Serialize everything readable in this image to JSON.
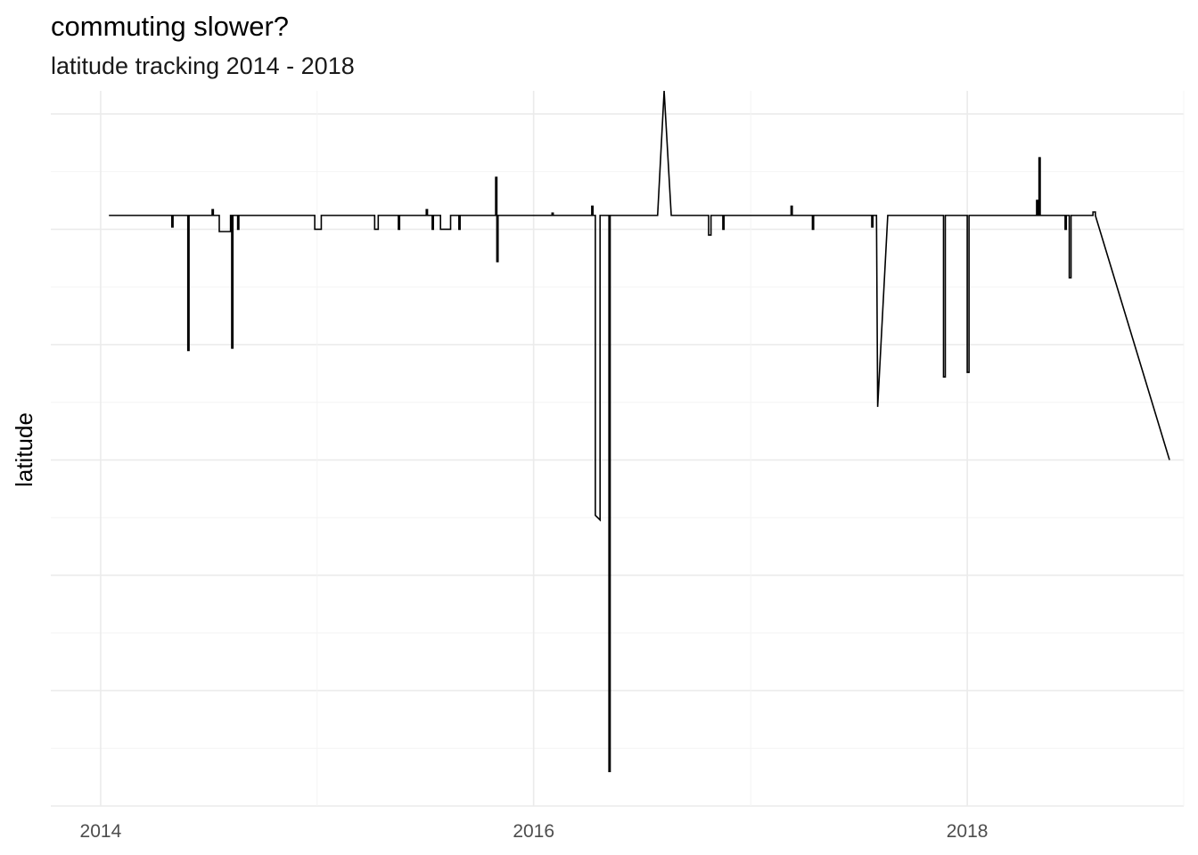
{
  "chart_data": {
    "type": "line",
    "title": "commuting slower?",
    "subtitle": "latitude tracking 2014 - 2018",
    "xlabel": "",
    "ylabel": "latitude",
    "x_ticks": [
      "2014",
      "2016",
      "2018"
    ],
    "y_ticks_labeled": false,
    "grid": true,
    "legend": "none",
    "line_color": "#000000",
    "xlim": [
      "2013-10-09",
      "2019-01-01"
    ],
    "ylim": [
      -2.0,
      4.2
    ],
    "series": [
      {
        "values": [
          [
            "2014-01-15",
            3.12
          ],
          [
            "2014-05-01",
            3.12
          ],
          [
            "2014-05-01",
            3.02
          ],
          [
            "2014-05-03",
            3.02
          ],
          [
            "2014-05-03",
            3.12
          ],
          [
            "2014-05-28",
            3.12
          ],
          [
            "2014-05-28",
            1.95
          ],
          [
            "2014-05-30",
            1.95
          ],
          [
            "2014-05-30",
            3.12
          ],
          [
            "2014-07-08",
            3.12
          ],
          [
            "2014-07-08",
            3.17
          ],
          [
            "2014-07-10",
            3.17
          ],
          [
            "2014-07-10",
            3.12
          ],
          [
            "2014-07-20",
            3.12
          ],
          [
            "2014-07-20",
            2.98
          ],
          [
            "2014-08-08",
            2.98
          ],
          [
            "2014-08-08",
            3.12
          ],
          [
            "2014-08-10",
            3.12
          ],
          [
            "2014-08-10",
            1.97
          ],
          [
            "2014-08-12",
            1.97
          ],
          [
            "2014-08-12",
            3.12
          ],
          [
            "2014-08-20",
            3.12
          ],
          [
            "2014-08-20",
            3.0
          ],
          [
            "2014-08-22",
            3.0
          ],
          [
            "2014-08-22",
            3.12
          ],
          [
            "2014-12-28",
            3.12
          ],
          [
            "2014-12-28",
            3.0
          ],
          [
            "2015-01-08",
            3.0
          ],
          [
            "2015-01-08",
            3.12
          ],
          [
            "2015-04-08",
            3.12
          ],
          [
            "2015-04-08",
            3.0
          ],
          [
            "2015-04-14",
            3.0
          ],
          [
            "2015-04-14",
            3.12
          ],
          [
            "2015-05-18",
            3.12
          ],
          [
            "2015-05-18",
            3.0
          ],
          [
            "2015-05-20",
            3.0
          ],
          [
            "2015-05-20",
            3.12
          ],
          [
            "2015-07-04",
            3.12
          ],
          [
            "2015-07-04",
            3.17
          ],
          [
            "2015-07-06",
            3.17
          ],
          [
            "2015-07-06",
            3.12
          ],
          [
            "2015-07-14",
            3.12
          ],
          [
            "2015-07-14",
            3.0
          ],
          [
            "2015-07-16",
            3.0
          ],
          [
            "2015-07-16",
            3.12
          ],
          [
            "2015-07-28",
            3.12
          ],
          [
            "2015-07-28",
            3.0
          ],
          [
            "2015-08-14",
            3.0
          ],
          [
            "2015-08-14",
            3.12
          ],
          [
            "2015-08-28",
            3.12
          ],
          [
            "2015-08-28",
            3.0
          ],
          [
            "2015-08-30",
            3.0
          ],
          [
            "2015-08-30",
            3.12
          ],
          [
            "2015-10-29",
            3.12
          ],
          [
            "2015-10-29",
            3.45
          ],
          [
            "2015-10-31",
            3.45
          ],
          [
            "2015-10-31",
            2.72
          ],
          [
            "2015-11-02",
            2.72
          ],
          [
            "2015-11-02",
            3.12
          ],
          [
            "2016-02-01",
            3.12
          ],
          [
            "2016-02-01",
            3.14
          ],
          [
            "2016-02-03",
            3.14
          ],
          [
            "2016-02-03",
            3.12
          ],
          [
            "2016-04-08",
            3.12
          ],
          [
            "2016-04-08",
            3.2
          ],
          [
            "2016-04-10",
            3.2
          ],
          [
            "2016-04-10",
            3.12
          ],
          [
            "2016-04-14",
            3.12
          ],
          [
            "2016-04-14",
            0.52
          ],
          [
            "2016-04-22",
            0.48
          ],
          [
            "2016-04-22",
            3.12
          ],
          [
            "2016-05-07",
            3.12
          ],
          [
            "2016-05-07",
            -1.7
          ],
          [
            "2016-05-09",
            -1.7
          ],
          [
            "2016-05-09",
            3.12
          ],
          [
            "2016-07-28",
            3.12
          ],
          [
            "2016-08-08",
            4.2
          ],
          [
            "2016-08-20",
            3.12
          ],
          [
            "2016-10-22",
            3.12
          ],
          [
            "2016-10-22",
            2.95
          ],
          [
            "2016-10-26",
            2.95
          ],
          [
            "2016-10-26",
            3.12
          ],
          [
            "2016-11-15",
            3.12
          ],
          [
            "2016-11-15",
            3.0
          ],
          [
            "2016-11-17",
            3.0
          ],
          [
            "2016-11-17",
            3.12
          ],
          [
            "2017-03-10",
            3.12
          ],
          [
            "2017-03-10",
            3.2
          ],
          [
            "2017-03-12",
            3.2
          ],
          [
            "2017-03-12",
            3.12
          ],
          [
            "2017-04-15",
            3.12
          ],
          [
            "2017-04-15",
            3.0
          ],
          [
            "2017-04-17",
            3.0
          ],
          [
            "2017-04-17",
            3.12
          ],
          [
            "2017-07-24",
            3.12
          ],
          [
            "2017-07-24",
            3.02
          ],
          [
            "2017-07-26",
            3.02
          ],
          [
            "2017-07-26",
            3.12
          ],
          [
            "2017-08-01",
            3.12
          ],
          [
            "2017-08-03",
            1.46
          ],
          [
            "2017-08-20",
            3.12
          ],
          [
            "2017-11-22",
            3.12
          ],
          [
            "2017-11-22",
            1.72
          ],
          [
            "2017-11-25",
            1.72
          ],
          [
            "2017-11-25",
            3.12
          ],
          [
            "2018-01-01",
            3.12
          ],
          [
            "2018-01-01",
            1.76
          ],
          [
            "2018-01-04",
            1.76
          ],
          [
            "2018-01-04",
            3.12
          ],
          [
            "2018-04-28",
            3.12
          ],
          [
            "2018-04-28",
            3.25
          ],
          [
            "2018-04-30",
            3.25
          ],
          [
            "2018-04-30",
            3.12
          ],
          [
            "2018-05-02",
            3.12
          ],
          [
            "2018-05-02",
            3.62
          ],
          [
            "2018-05-04",
            3.62
          ],
          [
            "2018-05-04",
            3.12
          ],
          [
            "2018-06-15",
            3.12
          ],
          [
            "2018-06-15",
            3.0
          ],
          [
            "2018-06-17",
            3.0
          ],
          [
            "2018-06-17",
            3.12
          ],
          [
            "2018-06-22",
            3.12
          ],
          [
            "2018-06-22",
            2.58
          ],
          [
            "2018-06-25",
            2.58
          ],
          [
            "2018-06-25",
            3.12
          ],
          [
            "2018-08-01",
            3.12
          ],
          [
            "2018-08-01",
            3.15
          ],
          [
            "2018-08-05",
            3.15
          ],
          [
            "2018-08-05",
            3.12
          ],
          [
            "2018-12-08",
            1.0
          ]
        ]
      }
    ]
  }
}
